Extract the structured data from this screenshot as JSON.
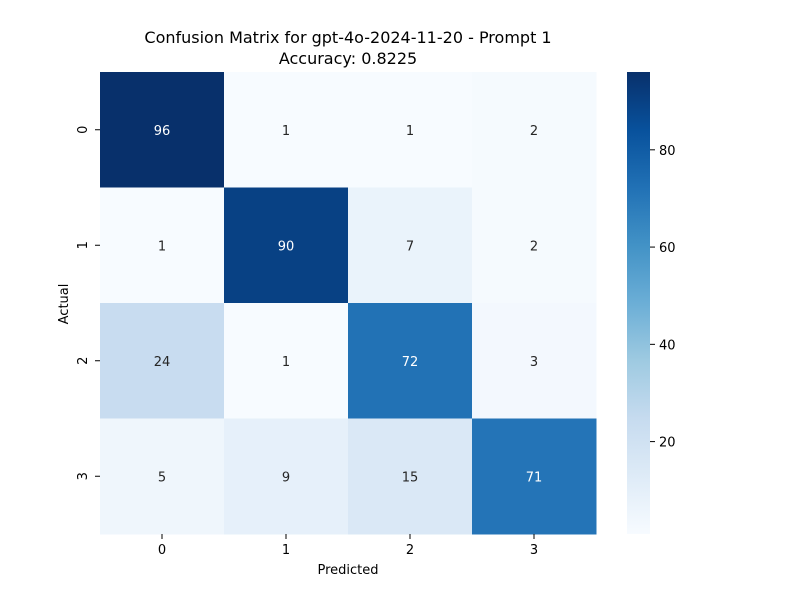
{
  "chart_data": {
    "type": "heatmap",
    "title": "Confusion Matrix for gpt-4o-2024-11-20 - Prompt 1",
    "subtitle": "Accuracy: 0.8225",
    "xlabel": "Predicted",
    "ylabel": "Actual",
    "x_categories": [
      "0",
      "1",
      "2",
      "3"
    ],
    "y_categories": [
      "0",
      "1",
      "2",
      "3"
    ],
    "matrix": [
      [
        96,
        1,
        1,
        2
      ],
      [
        1,
        90,
        7,
        2
      ],
      [
        24,
        1,
        72,
        3
      ],
      [
        5,
        9,
        15,
        71
      ]
    ],
    "colormap": "Blues",
    "value_range": [
      1,
      96
    ],
    "colorbar_ticks": [
      "20",
      "40",
      "60",
      "80"
    ],
    "colorbar_tick_values": [
      20,
      40,
      60,
      80
    ],
    "annotations": true,
    "grid": false
  }
}
